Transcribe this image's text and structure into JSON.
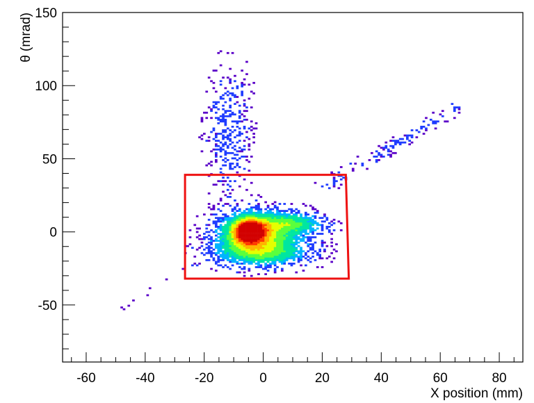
{
  "chart_data": {
    "type": "heatmap",
    "title": "",
    "xlabel": "X position (mm)",
    "ylabel": "θ (mrad)",
    "xlim": [
      -68,
      88
    ],
    "ylim": [
      -89,
      150
    ],
    "x_ticks": [
      -60,
      -40,
      -20,
      0,
      20,
      40,
      60,
      80
    ],
    "x_tick_labels": [
      "-60",
      "-40",
      "-20",
      "0",
      "20",
      "40",
      "60",
      "80"
    ],
    "y_ticks": [
      -50,
      0,
      50,
      100,
      150
    ],
    "y_tick_labels": [
      "-50",
      "0",
      "50",
      "100",
      "150"
    ],
    "colormap": [
      "#5a00c8",
      "#1f3cff",
      "#00b4ff",
      "#00e6a0",
      "#5aff3c",
      "#e6ff00",
      "#ffb400",
      "#ff3c00",
      "#d20000"
    ],
    "cut_box": {
      "color": "#ee1111",
      "corners": [
        [
          -26.5,
          39
        ],
        [
          28,
          39
        ],
        [
          29,
          -32
        ],
        [
          -26.5,
          -32
        ]
      ]
    },
    "density_components": [
      {
        "name": "core",
        "x": -5,
        "y": 0,
        "sx": 3.6,
        "sy": 5.5,
        "weight": 1.0
      },
      {
        "name": "core-halo",
        "x": -3,
        "y": -3,
        "sx": 8.5,
        "sy": 10,
        "weight": 0.55
      },
      {
        "name": "upper-right-band",
        "x": 10,
        "y": 5,
        "sx": 7,
        "sy": 5,
        "weight": 0.35
      },
      {
        "name": "lower-band",
        "x": 0,
        "y": -15,
        "sx": 11,
        "sy": 6,
        "weight": 0.3
      },
      {
        "name": "vertical-plume",
        "x": -12,
        "y": 70,
        "sx": 5,
        "sy": 28,
        "weight": 0.12
      },
      {
        "name": "diagonal-streak",
        "from": [
          20,
          30
        ],
        "to": [
          66,
          85
        ],
        "width": 2.5,
        "weight": 0.08
      },
      {
        "name": "lower-left-tail",
        "from": [
          -58,
          -67
        ],
        "to": [
          -22,
          -20
        ],
        "width": 1.5,
        "weight": 0.03
      }
    ]
  }
}
